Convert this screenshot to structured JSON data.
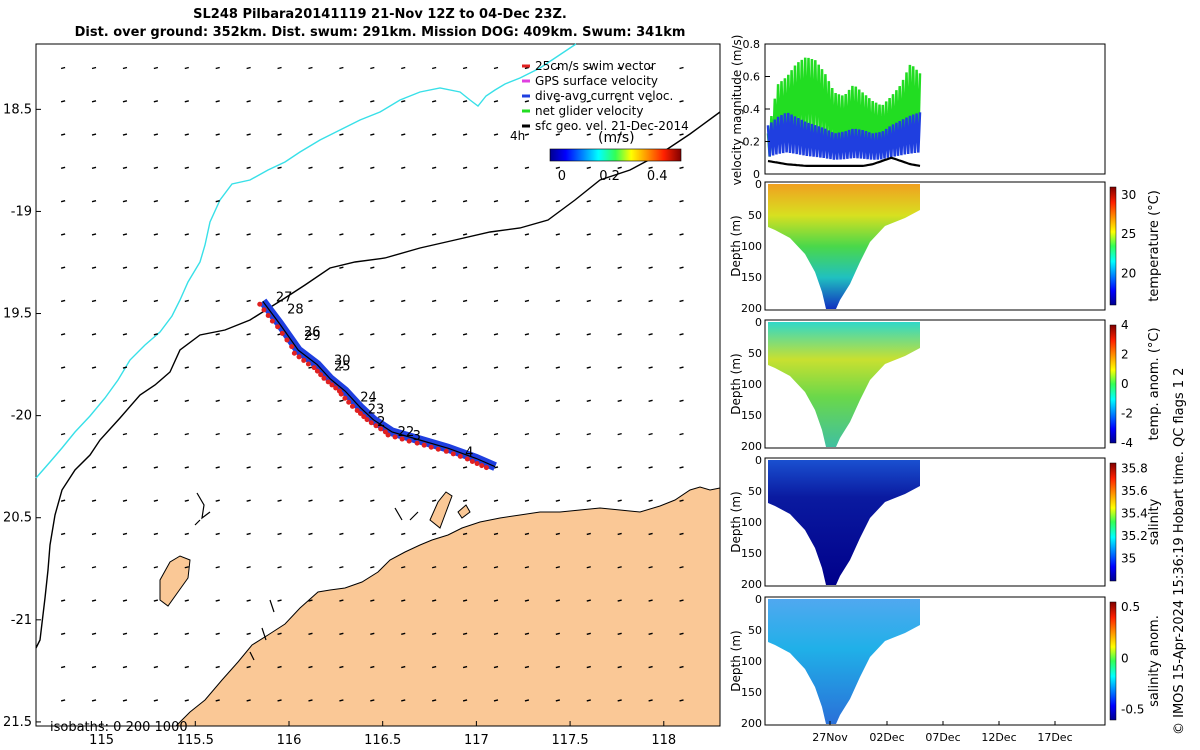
{
  "titles": {
    "line1": "SL248 Pilbara20141119 21-Nov 12Z to 04-Dec 23Z.",
    "line2": "Dist. over ground: 352km. Dist. swum: 291km. Mission DOG: 409km. Swum: 341km"
  },
  "side_note": "© IMOS 15-Apr-2024 15:36:19 Hobart time. QC flags 1  2",
  "chart_data": [
    {
      "type": "scatter",
      "panel": "glider-track-map",
      "xlim": [
        114.65,
        118.3
      ],
      "ylim": [
        -21.52,
        -18.18
      ],
      "xticks": [
        115,
        115.5,
        116,
        116.5,
        117,
        117.5,
        118
      ],
      "xticklabels": [
        "115",
        "115.5",
        "116",
        "116.5",
        "117",
        "117.5",
        "118"
      ],
      "yticks": [
        -18.5,
        -19,
        -19.5,
        -20,
        -20.5,
        -21,
        -21.5
      ],
      "yticklabels": [
        "18.5",
        "-19",
        "19.5",
        "-20",
        "20.5",
        "-21",
        "21.5"
      ],
      "legend": {
        "position": "top-right",
        "entries": [
          {
            "label": "25cm/s swim vector",
            "color": "#e02020"
          },
          {
            "label": "GPS surface velocity",
            "color": "#e040e0"
          },
          {
            "label": "dive-avg current veloc.",
            "color": "#1f3fe0"
          },
          {
            "label": "net glider velocity",
            "color": "#22dd22"
          },
          {
            "label": "sfc geo. vel. 21-Dec-2014",
            "color": "#000000"
          }
        ]
      },
      "colorbar": {
        "label": "(m/s)",
        "ticks": [
          "0",
          "0.2",
          "0.4"
        ],
        "range": [
          -0.05,
          0.5
        ],
        "extra_label": "4h"
      },
      "isobaths_label": "isobaths: 0   200  1000",
      "track": [
        [
          115.86,
          -19.44
        ],
        [
          115.95,
          -19.55
        ],
        [
          116.05,
          -19.68
        ],
        [
          116.15,
          -19.75
        ],
        [
          116.22,
          -19.82
        ],
        [
          116.3,
          -19.88
        ],
        [
          116.38,
          -19.96
        ],
        [
          116.45,
          -20.02
        ],
        [
          116.55,
          -20.08
        ],
        [
          116.7,
          -20.12
        ],
        [
          116.85,
          -20.16
        ],
        [
          117.0,
          -20.21
        ],
        [
          117.1,
          -20.25
        ]
      ],
      "track_labels": [
        {
          "text": "27",
          "lon": 115.93,
          "lat": -19.44
        },
        {
          "text": "28",
          "lon": 115.99,
          "lat": -19.5
        },
        {
          "text": "26",
          "lon": 116.08,
          "lat": -19.61
        },
        {
          "text": "29",
          "lon": 116.08,
          "lat": -19.63
        },
        {
          "text": "30",
          "lon": 116.24,
          "lat": -19.75
        },
        {
          "text": "25",
          "lon": 116.24,
          "lat": -19.78
        },
        {
          "text": "24",
          "lon": 116.38,
          "lat": -19.93
        },
        {
          "text": "23",
          "lon": 116.42,
          "lat": -19.99
        },
        {
          "text": "2",
          "lon": 116.47,
          "lat": -20.05
        },
        {
          "text": "22",
          "lon": 116.58,
          "lat": -20.1
        },
        {
          "text": "3",
          "lon": 116.66,
          "lat": -20.12
        },
        {
          "text": "4",
          "lon": 116.94,
          "lat": -20.2
        }
      ]
    },
    {
      "type": "line",
      "panel": "velocity-magnitude",
      "ylabel": "velocity magnitude (m/s)",
      "ylim": [
        0,
        0.8
      ],
      "yticks": [
        "0",
        "0.2",
        "0.4",
        "0.6",
        "0.8"
      ],
      "series": [
        {
          "color": "#22dd22",
          "values": [
            0.25,
            0.55,
            0.6,
            0.68,
            0.72,
            0.7,
            0.62,
            0.5,
            0.48,
            0.55,
            0.5,
            0.45,
            0.42,
            0.48,
            0.55,
            0.68,
            0.62
          ]
        },
        {
          "color": "#1f3fe0",
          "values": [
            0.3,
            0.35,
            0.38,
            0.35,
            0.32,
            0.3,
            0.28,
            0.25,
            0.26,
            0.28,
            0.27,
            0.25,
            0.26,
            0.3,
            0.33,
            0.36,
            0.38
          ]
        },
        {
          "color": "#000000",
          "values": [
            0.08,
            0.07,
            0.06,
            0.055,
            0.05,
            0.05,
            0.05,
            0.05,
            0.05,
            0.05,
            0.05,
            0.06,
            0.08,
            0.1,
            0.08,
            0.06,
            0.05
          ]
        }
      ]
    },
    {
      "type": "heatmap",
      "panel": "temperature",
      "ylabel": "Depth (m)",
      "yticks": [
        "0",
        "50",
        "100",
        "150",
        "200"
      ],
      "colorbar_label": "temperature  (°C)",
      "colorbar_ticks": [
        "30",
        "25",
        "20"
      ],
      "colorbar_range": [
        16,
        31
      ]
    },
    {
      "type": "heatmap",
      "panel": "temp-anomaly",
      "ylabel": "Depth (m)",
      "yticks": [
        "0",
        "50",
        "100",
        "150",
        "200"
      ],
      "colorbar_label": "temp. anom. (°C)",
      "colorbar_ticks": [
        "4",
        "2",
        "0",
        "-2",
        "-4"
      ],
      "colorbar_range": [
        -4,
        4
      ]
    },
    {
      "type": "heatmap",
      "panel": "salinity",
      "ylabel": "Depth (m)",
      "yticks": [
        "0",
        "50",
        "100",
        "150",
        "200"
      ],
      "colorbar_label": "salinity",
      "colorbar_ticks": [
        "35.8",
        "35.6",
        "35.4",
        "35.2",
        "35"
      ],
      "colorbar_range": [
        34.8,
        35.85
      ]
    },
    {
      "type": "heatmap",
      "panel": "salinity-anomaly",
      "ylabel": "Depth (m)",
      "yticks": [
        "0",
        "50",
        "100",
        "150",
        "200"
      ],
      "colorbar_label": "salinity anom.",
      "colorbar_ticks": [
        "0.5",
        "0",
        "-0.5"
      ],
      "colorbar_range": [
        -0.6,
        0.55
      ],
      "xticklabels": [
        "27Nov",
        "02Dec",
        "07Dec",
        "12Dec",
        "17Dec"
      ]
    }
  ]
}
